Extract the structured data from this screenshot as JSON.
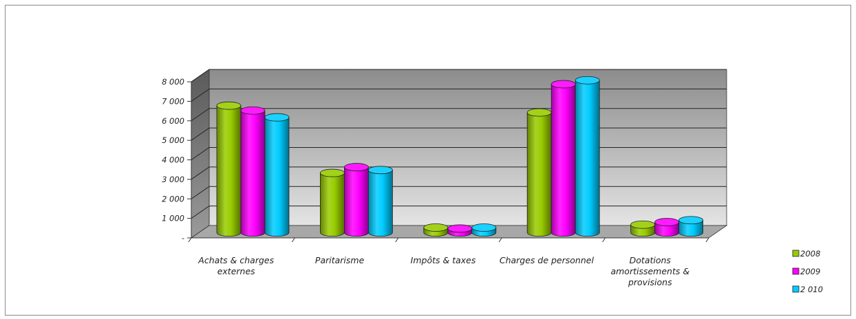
{
  "chart_data": {
    "type": "bar",
    "title": "",
    "xlabel": "",
    "ylabel": "",
    "categories": [
      [
        "Achats & charges",
        "externes"
      ],
      [
        "Paritarisme"
      ],
      [
        "Impôts & taxes"
      ],
      [
        "Charges de personnel"
      ],
      [
        "Dotations",
        "amortissements &",
        "provisions"
      ]
    ],
    "series": [
      {
        "name": "2008",
        "color": "#99cc00",
        "values": [
          6500,
          3050,
          250,
          6150,
          400
        ]
      },
      {
        "name": "2009",
        "color": "#ff00ff",
        "values": [
          6250,
          3350,
          200,
          7600,
          530
        ]
      },
      {
        "name": "2 010",
        "color": "#00ccff",
        "values": [
          5900,
          3200,
          250,
          7800,
          630
        ]
      }
    ],
    "yticks": [
      {
        "value": 0,
        "label": "-"
      },
      {
        "value": 1000,
        "label": "1 000"
      },
      {
        "value": 2000,
        "label": "2 000"
      },
      {
        "value": 3000,
        "label": "3 000"
      },
      {
        "value": 4000,
        "label": "4 000"
      },
      {
        "value": 5000,
        "label": "5 000"
      },
      {
        "value": 6000,
        "label": "6 000"
      },
      {
        "value": 7000,
        "label": "7 000"
      },
      {
        "value": 8000,
        "label": "8 000"
      }
    ],
    "ylim": [
      0,
      8000
    ],
    "grid": true,
    "legend": "right",
    "style": "3d-cylinder"
  }
}
